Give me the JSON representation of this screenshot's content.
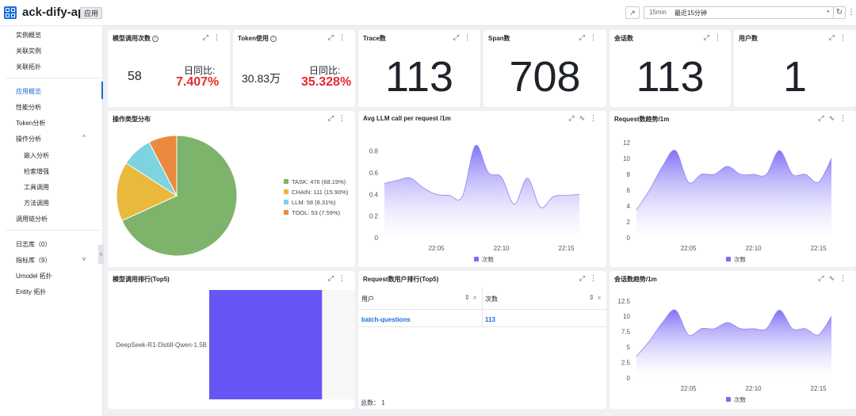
{
  "header": {
    "app_title": "ack-dify-api",
    "app_badge": "应用",
    "time_range_short": "15min",
    "time_range_label": "最近15分钟"
  },
  "sidebar": {
    "items": [
      {
        "label": "实例概览"
      },
      {
        "label": "关联实例"
      },
      {
        "label": "关联拓扑"
      },
      {
        "label": "应用概览",
        "active": true
      },
      {
        "label": "性能分析"
      },
      {
        "label": "Token分析"
      },
      {
        "label": "操作分析"
      },
      {
        "label": "嵌入分析"
      },
      {
        "label": "检索增强"
      },
      {
        "label": "工具调用"
      },
      {
        "label": "方法调用"
      },
      {
        "label": "调用链分析"
      },
      {
        "label": "日志库（0）"
      },
      {
        "label": "指标库（9）"
      },
      {
        "label": "Umodel 拓扑"
      },
      {
        "label": "Entity 拓扑"
      }
    ]
  },
  "kpis": {
    "model_calls": {
      "title": "模型调用次数",
      "value": "58",
      "yoy_label": "日同比:",
      "yoy_value": "7.407%"
    },
    "token_usage": {
      "title": "Token使用",
      "value": "30.83万",
      "yoy_label": "日同比:",
      "yoy_value": "35.328%"
    },
    "trace": {
      "title": "Trace数",
      "value": "113"
    },
    "span": {
      "title": "Span数",
      "value": "708"
    },
    "sessions": {
      "title": "会话数",
      "value": "113"
    },
    "users": {
      "title": "用户数",
      "value": "1"
    }
  },
  "colors": {
    "accent": "#1d6dd8",
    "alert": "#e5292f",
    "area_top": "#7b6cf6",
    "area_bottom": "#ffffff",
    "bar": "#6556f5"
  },
  "panels": {
    "op_dist": {
      "title": "操作类型分布"
    },
    "avg_llm": {
      "title": "Avg LLM call per request /1m"
    },
    "req_trend": {
      "title": "Request数趋势/1m"
    },
    "model_rank": {
      "title": "模型调用排行(Top5)"
    },
    "user_rank": {
      "title": "Request数用户排行(Top5)"
    },
    "session_trend": {
      "title": "会话数趋势/1m"
    }
  },
  "table": {
    "headers": [
      "用户",
      "次数"
    ],
    "rows": [
      [
        "batch-questions",
        "113"
      ]
    ],
    "total": "总数： 1"
  },
  "chart_data": [
    {
      "type": "pie",
      "categories": [
        "TASK",
        "CHAIN",
        "LLM",
        "TOOL"
      ],
      "values": [
        476,
        111,
        58,
        53
      ],
      "percent_labels": [
        "68.19%",
        "15.90%",
        "8.31%",
        "7.59%"
      ],
      "legend": [
        "TASK: 476 (68.19%)",
        "CHAIN: 111 (15.90%)",
        "LLM: 58 (8.31%)",
        "TOOL: 53 (7.59%)"
      ],
      "colors": [
        "#7db36b",
        "#e9b93c",
        "#7dd3df",
        "#eb8a3f"
      ],
      "legend_position": "right"
    },
    {
      "type": "area",
      "x_ticks": [
        "22:05",
        "22:10",
        "22:15"
      ],
      "series": [
        {
          "name": "次数",
          "x": [
            "22:01",
            "22:02",
            "22:03",
            "22:04",
            "22:05",
            "22:06",
            "22:07",
            "22:08",
            "22:09",
            "22:10",
            "22:11",
            "22:12",
            "22:13",
            "22:14",
            "22:15",
            "22:16"
          ],
          "values": [
            0.5,
            0.53,
            0.55,
            0.46,
            0.4,
            0.39,
            0.38,
            0.85,
            0.6,
            0.56,
            0.31,
            0.55,
            0.28,
            0.38,
            0.39,
            0.4
          ]
        }
      ],
      "yticks": [
        0,
        0.2,
        0.4,
        0.6,
        0.8
      ],
      "ylim": [
        0,
        0.95
      ],
      "legend_position": "bottom"
    },
    {
      "type": "area",
      "x_ticks": [
        "22:05",
        "22:10",
        "22:15"
      ],
      "series": [
        {
          "name": "次数",
          "x": [
            "22:01",
            "22:02",
            "22:03",
            "22:04",
            "22:05",
            "22:06",
            "22:07",
            "22:08",
            "22:09",
            "22:10",
            "22:11",
            "22:12",
            "22:13",
            "22:14",
            "22:15",
            "22:16"
          ],
          "values": [
            3.5,
            6,
            9,
            11,
            7,
            8,
            8,
            9,
            8,
            8,
            8,
            11,
            8,
            8,
            7,
            10
          ]
        }
      ],
      "yticks": [
        0,
        2,
        4,
        6,
        8,
        10,
        12
      ],
      "ylim": [
        0,
        13
      ],
      "legend_position": "bottom"
    },
    {
      "type": "bar",
      "orientation": "horizontal",
      "categories": [
        "DeepSeek-R1-Distill-Qwen-1.5B"
      ],
      "values": [
        58
      ],
      "xlim": [
        0,
        75
      ]
    },
    {
      "type": "area",
      "x_ticks": [
        "22:05",
        "22:10",
        "22:15"
      ],
      "series": [
        {
          "name": "次数",
          "x": [
            "22:01",
            "22:02",
            "22:03",
            "22:04",
            "22:05",
            "22:06",
            "22:07",
            "22:08",
            "22:09",
            "22:10",
            "22:11",
            "22:12",
            "22:13",
            "22:14",
            "22:15",
            "22:16"
          ],
          "values": [
            3.5,
            6,
            9,
            11,
            7,
            8,
            8,
            9,
            8,
            8,
            8,
            11,
            8,
            8,
            7,
            10
          ]
        }
      ],
      "yticks": [
        0,
        2.5,
        5,
        7.5,
        10,
        12.5
      ],
      "ylim": [
        0,
        13.5
      ],
      "legend_position": "bottom"
    }
  ]
}
